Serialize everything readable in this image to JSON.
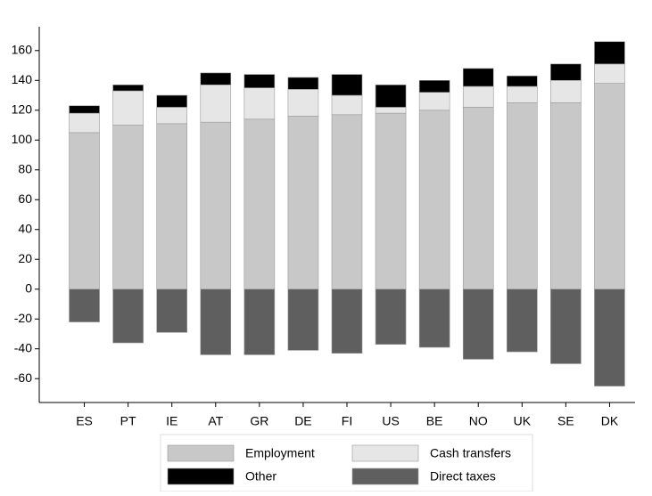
{
  "chart_data": {
    "type": "stacked_bar",
    "categories": [
      "ES",
      "PT",
      "IE",
      "AT",
      "GR",
      "DE",
      "FI",
      "US",
      "BE",
      "NO",
      "UK",
      "SE",
      "DK"
    ],
    "series": [
      {
        "name": "Employment",
        "color": "#c8c8c8",
        "values": [
          105,
          110,
          111,
          112,
          114,
          116,
          117,
          118,
          120,
          122,
          125,
          125,
          138
        ]
      },
      {
        "name": "Cash transfers",
        "color": "#e6e6e6",
        "values": [
          13,
          23,
          11,
          25,
          21,
          18,
          13,
          4,
          12,
          14,
          11,
          15,
          13
        ]
      },
      {
        "name": "Other",
        "color": "#000000",
        "values": [
          5,
          4,
          8,
          8,
          9,
          8,
          14,
          15,
          8,
          12,
          7,
          11,
          15
        ]
      },
      {
        "name": "Direct taxes",
        "color": "#5f5f5f",
        "values": [
          -22,
          -36,
          -29,
          -44,
          -44,
          -41,
          -43,
          -37,
          -39,
          -47,
          -42,
          -50,
          -65
        ]
      }
    ],
    "ylim": [
      -76,
      176
    ],
    "yticks": [
      -60,
      -40,
      -20,
      0,
      20,
      40,
      60,
      80,
      100,
      120,
      140,
      160
    ],
    "grid": false
  }
}
